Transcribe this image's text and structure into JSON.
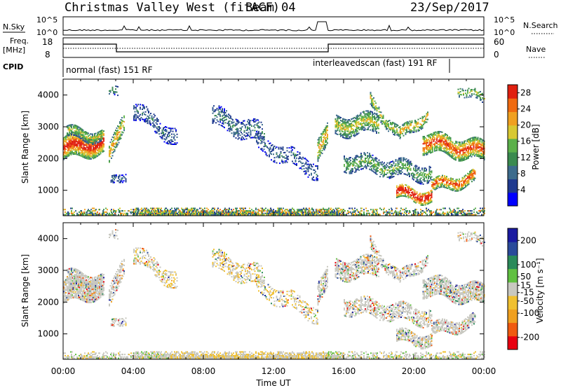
{
  "header": {
    "title": "Christmas Valley West (fitACF)",
    "beam": "Beam 04",
    "date": "23/Sep/2017"
  },
  "top_panels": {
    "nsky_label": "N.Sky",
    "nsearch_label": "N.Search",
    "nsky_ticks": [
      "10^5",
      "10^0"
    ],
    "nsearch_ticks": [
      "10^5",
      "10^0"
    ],
    "freq_label_1": "Freq.",
    "freq_label_2": "[MHz]",
    "freq_ticks": [
      "18",
      "8"
    ],
    "nave_label": "Nave",
    "nave_ticks": [
      "60",
      "0"
    ],
    "cpid_label": "CPID",
    "cpid_mode_1": "normal (fast) 151 RF",
    "cpid_mode_2": "interleavedscan (fast) 191 RF"
  },
  "chart_data": [
    {
      "type": "heatmap",
      "name": "power",
      "ylabel": "Slant Range [km]",
      "xlabel": "",
      "x_ticks": [
        "00:00",
        "04:00",
        "08:00",
        "12:00",
        "16:00",
        "20:00",
        "00:00"
      ],
      "y_ticks": [
        1000,
        2000,
        3000,
        4000
      ],
      "xlim_hours": [
        0,
        24
      ],
      "ylim_km": [
        200,
        4500
      ],
      "colorbar_label": "Power [dB]",
      "colorbar_ticks": [
        4,
        8,
        12,
        16,
        20,
        24,
        28
      ],
      "colorbar_range": [
        0,
        30
      ],
      "colors": [
        "#0000ff",
        "#1f3a8f",
        "#3c6b8c",
        "#3a8a4f",
        "#5bb04a",
        "#d8c832",
        "#f0a020",
        "#f06a10",
        "#e02010"
      ]
    },
    {
      "type": "heatmap",
      "name": "velocity",
      "ylabel": "Slant Range [km]",
      "xlabel": "Time UT",
      "x_ticks": [
        "00:00",
        "04:00",
        "08:00",
        "12:00",
        "16:00",
        "20:00",
        "00:00"
      ],
      "y_ticks": [
        1000,
        2000,
        3000,
        4000
      ],
      "xlim_hours": [
        0,
        24
      ],
      "ylim_km": [
        200,
        4500
      ],
      "colorbar_label": "Velocity [m s⁻¹]",
      "colorbar_ticks": [
        -200,
        -100,
        -50,
        -15,
        15,
        50,
        100,
        200
      ],
      "colorbar_range": [
        -250,
        250
      ],
      "colors": [
        "#e80010",
        "#f05a10",
        "#f0a020",
        "#f0c030",
        "#c8c8c0",
        "#60c040",
        "#2a8a5a",
        "#2a4a9a",
        "#1a1aa0"
      ]
    }
  ]
}
